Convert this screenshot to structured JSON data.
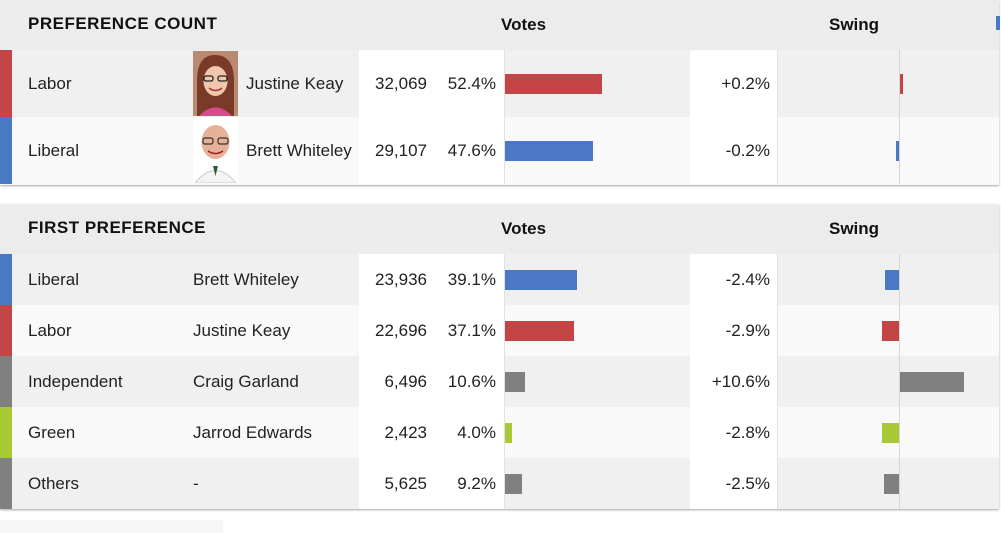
{
  "colors": {
    "labor": "#c44545",
    "liberal": "#4a78c4",
    "independent": "#808080",
    "green": "#a6c934",
    "others": "#808080"
  },
  "preference_count": {
    "title": "PREFERENCE COUNT",
    "votes_header": "Votes",
    "swing_header": "Swing",
    "rows": [
      {
        "party": "Labor",
        "party_key": "labor",
        "candidate": "Justine Keay",
        "photo": "candidate-photo-female",
        "votes": "32,069",
        "pct": "52.4%",
        "pct_value": 52.4,
        "swing": "+0.2%",
        "swing_value": 0.2
      },
      {
        "party": "Liberal",
        "party_key": "liberal",
        "candidate": "Brett Whiteley",
        "photo": "candidate-photo-male",
        "votes": "29,107",
        "pct": "47.6%",
        "pct_value": 47.6,
        "swing": "-0.2%",
        "swing_value": -0.2
      }
    ]
  },
  "first_preference": {
    "title": "FIRST PREFERENCE",
    "votes_header": "Votes",
    "swing_header": "Swing",
    "rows": [
      {
        "party": "Liberal",
        "party_key": "liberal",
        "candidate": "Brett Whiteley",
        "votes": "23,936",
        "pct": "39.1%",
        "pct_value": 39.1,
        "swing": "-2.4%",
        "swing_value": -2.4
      },
      {
        "party": "Labor",
        "party_key": "labor",
        "candidate": "Justine Keay",
        "votes": "22,696",
        "pct": "37.1%",
        "pct_value": 37.1,
        "swing": "-2.9%",
        "swing_value": -2.9
      },
      {
        "party": "Independent",
        "party_key": "independent",
        "candidate": "Craig Garland",
        "votes": "6,496",
        "pct": "10.6%",
        "pct_value": 10.6,
        "swing": "+10.6%",
        "swing_value": 10.6
      },
      {
        "party": "Green",
        "party_key": "green",
        "candidate": "Jarrod Edwards",
        "votes": "2,423",
        "pct": "4.0%",
        "pct_value": 4.0,
        "swing": "-2.8%",
        "swing_value": -2.8
      },
      {
        "party": "Others",
        "party_key": "others",
        "candidate": "-",
        "votes": "5,625",
        "pct": "9.2%",
        "pct_value": 9.2,
        "swing": "-2.5%",
        "swing_value": -2.5
      }
    ]
  }
}
